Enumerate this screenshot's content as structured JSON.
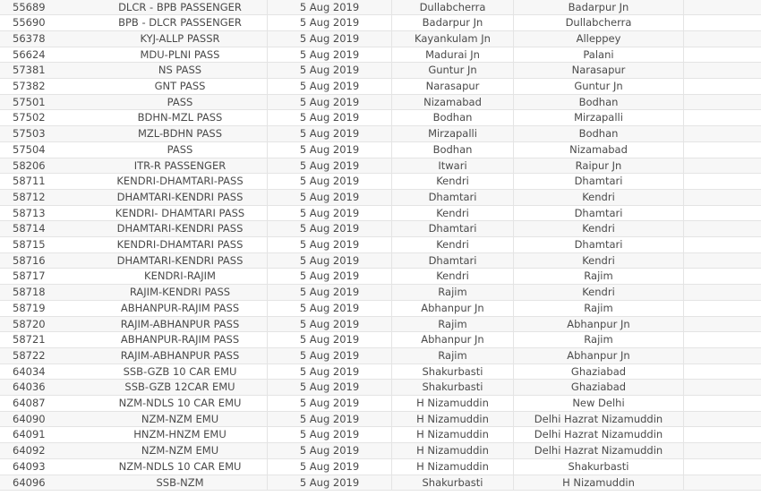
{
  "rows": [
    [
      "55689",
      "DLCR - BPB PASSENGER",
      "5 Aug 2019",
      "Dullabcherra",
      "Badarpur Jn"
    ],
    [
      "55690",
      "BPB - DLCR PASSENGER",
      "5 Aug 2019",
      "Badarpur Jn",
      "Dullabcherra"
    ],
    [
      "56378",
      "KYJ-ALLP PASSR",
      "5 Aug 2019",
      "Kayankulam Jn",
      "Alleppey"
    ],
    [
      "56624",
      "MDU-PLNI PASS",
      "5 Aug 2019",
      "Madurai Jn",
      "Palani"
    ],
    [
      "57381",
      "NS PASS",
      "5 Aug 2019",
      "Guntur Jn",
      "Narasapur"
    ],
    [
      "57382",
      "GNT PASS",
      "5 Aug 2019",
      "Narasapur",
      "Guntur Jn"
    ],
    [
      "57501",
      "PASS",
      "5 Aug 2019",
      "Nizamabad",
      "Bodhan"
    ],
    [
      "57502",
      "BDHN-MZL PASS",
      "5 Aug 2019",
      "Bodhan",
      "Mirzapalli"
    ],
    [
      "57503",
      "MZL-BDHN PASS",
      "5 Aug 2019",
      "Mirzapalli",
      "Bodhan"
    ],
    [
      "57504",
      "PASS",
      "5 Aug 2019",
      "Bodhan",
      "Nizamabad"
    ],
    [
      "58206",
      "ITR-R PASSENGER",
      "5 Aug 2019",
      "Itwari",
      "Raipur Jn"
    ],
    [
      "58711",
      "KENDRI-DHAMTARI-PASS",
      "5 Aug 2019",
      "Kendri",
      "Dhamtari"
    ],
    [
      "58712",
      "DHAMTARI-KENDRI PASS",
      "5 Aug 2019",
      "Dhamtari",
      "Kendri"
    ],
    [
      "58713",
      "KENDRI- DHAMTARI PASS",
      "5 Aug 2019",
      "Kendri",
      "Dhamtari"
    ],
    [
      "58714",
      "DHAMTARI-KENDRI PASS",
      "5 Aug 2019",
      "Dhamtari",
      "Kendri"
    ],
    [
      "58715",
      "KENDRI-DHAMTARI PASS",
      "5 Aug 2019",
      "Kendri",
      "Dhamtari"
    ],
    [
      "58716",
      "DHAMTARI-KENDRI PASS",
      "5 Aug 2019",
      "Dhamtari",
      "Kendri"
    ],
    [
      "58717",
      "KENDRI-RAJIM",
      "5 Aug 2019",
      "Kendri",
      "Rajim"
    ],
    [
      "58718",
      "RAJIM-KENDRI PASS",
      "5 Aug 2019",
      "Rajim",
      "Kendri"
    ],
    [
      "58719",
      "ABHANPUR-RAJIM PASS",
      "5 Aug 2019",
      "Abhanpur Jn",
      "Rajim"
    ],
    [
      "58720",
      "RAJIM-ABHANPUR PASS",
      "5 Aug 2019",
      "Rajim",
      "Abhanpur Jn"
    ],
    [
      "58721",
      "ABHANPUR-RAJIM PASS",
      "5 Aug 2019",
      "Abhanpur Jn",
      "Rajim"
    ],
    [
      "58722",
      "RAJIM-ABHANPUR PASS",
      "5 Aug 2019",
      "Rajim",
      "Abhanpur Jn"
    ],
    [
      "64034",
      "SSB-GZB 10 CAR EMU",
      "5 Aug 2019",
      "Shakurbasti",
      "Ghaziabad"
    ],
    [
      "64036",
      "SSB-GZB 12CAR EMU",
      "5 Aug 2019",
      "Shakurbasti",
      "Ghaziabad"
    ],
    [
      "64087",
      "NZM-NDLS 10 CAR EMU",
      "5 Aug 2019",
      "H Nizamuddin",
      "New Delhi"
    ],
    [
      "64090",
      "NZM-NZM EMU",
      "5 Aug 2019",
      "H Nizamuddin",
      "Delhi Hazrat Nizamuddin"
    ],
    [
      "64091",
      "HNZM-HNZM EMU",
      "5 Aug 2019",
      "H Nizamuddin",
      "Delhi Hazrat Nizamuddin"
    ],
    [
      "64092",
      "NZM-NZM EMU",
      "5 Aug 2019",
      "H Nizamuddin",
      "Delhi Hazrat Nizamuddin"
    ],
    [
      "64093",
      "NZM-NDLS 10 CAR EMU",
      "5 Aug 2019",
      "H Nizamuddin",
      "Shakurbasti"
    ],
    [
      "64096",
      "SSB-NZM",
      "5 Aug 2019",
      "Shakurbasti",
      "H Nizamuddin"
    ]
  ]
}
